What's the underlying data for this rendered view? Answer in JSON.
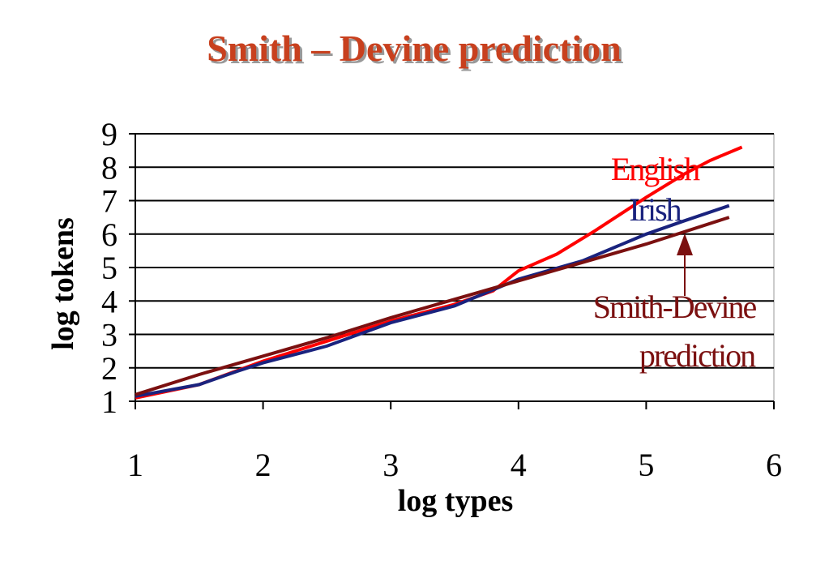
{
  "chart_data": {
    "type": "line",
    "title": "Smith – Devine prediction",
    "xlabel": "log types",
    "ylabel": "log tokens",
    "xlim": [
      1,
      6
    ],
    "xticks": [
      1,
      2,
      3,
      4,
      5,
      6
    ],
    "ylim": [
      1,
      9
    ],
    "yticks": [
      1,
      2,
      3,
      4,
      5,
      6,
      7,
      8,
      9
    ],
    "grid": true,
    "series": [
      {
        "name": "English",
        "color": "#ff0000",
        "x": [
          1,
          1.5,
          2,
          2.5,
          3,
          3.5,
          3.8,
          4,
          4.3,
          4.6,
          5,
          5.3,
          5.5,
          5.75
        ],
        "values": [
          1.1,
          1.5,
          2.2,
          2.8,
          3.4,
          3.9,
          4.3,
          4.9,
          5.4,
          6.1,
          7.1,
          7.8,
          8.2,
          8.6
        ]
      },
      {
        "name": "Irish",
        "color": "#1a237e",
        "x": [
          1,
          1.5,
          1.8,
          2,
          2.5,
          3,
          3.5,
          4,
          4.5,
          5,
          5.3,
          5.65
        ],
        "values": [
          1.15,
          1.5,
          1.9,
          2.15,
          2.65,
          3.35,
          3.85,
          4.65,
          5.2,
          6.0,
          6.4,
          6.85
        ]
      },
      {
        "name": "Smith-Devine",
        "color": "#7b1010",
        "x": [
          1,
          1.5,
          2,
          2.5,
          3,
          3.5,
          4,
          4.5,
          5,
          5.65
        ],
        "values": [
          1.2,
          1.8,
          2.35,
          2.9,
          3.5,
          4.05,
          4.6,
          5.15,
          5.7,
          6.5
        ]
      }
    ],
    "annotation": "prediction"
  }
}
